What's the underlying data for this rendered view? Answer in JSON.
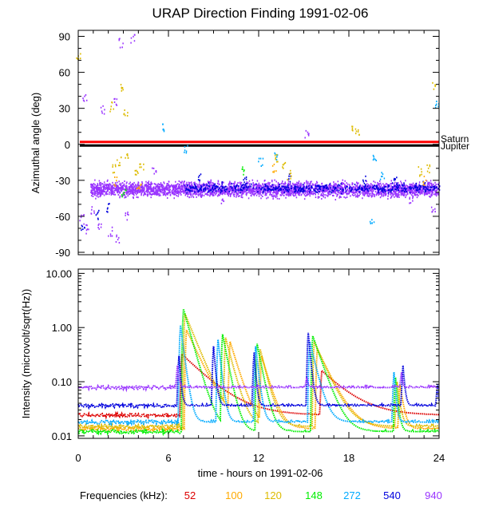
{
  "chart_data": [
    {
      "type": "scatter",
      "title": "URAP Direction Finding  1991-02-06",
      "ylabel": "Azimuthal angle (deg)",
      "xlabel": "",
      "xlim": [
        0,
        24
      ],
      "ylim": [
        -92,
        95
      ],
      "yticks": [
        90,
        60,
        30,
        0,
        -30,
        -60,
        -90
      ],
      "reference_lines": [
        {
          "name": "Saturn",
          "y": 2,
          "color": "#ff0000"
        },
        {
          "name": "Jupiter",
          "y": -1,
          "color": "#000000"
        }
      ],
      "series": [
        {
          "name": "940",
          "color": "#9933ff",
          "band": {
            "center": -37,
            "spread": 5,
            "x_from": 0.8,
            "x_to": 24
          },
          "points": [
            [
              0.2,
              -62
            ],
            [
              0.5,
              -70
            ],
            [
              0.9,
              -55
            ],
            [
              1.4,
              -66
            ],
            [
              2.1,
              -72
            ],
            [
              2.6,
              -78
            ],
            [
              3.2,
              -60
            ],
            [
              2.8,
              85
            ],
            [
              3.6,
              88
            ],
            [
              1.6,
              30
            ],
            [
              0.4,
              40
            ],
            [
              2.4,
              35
            ],
            [
              22.1,
              -45
            ],
            [
              23.6,
              -55
            ],
            [
              15.2,
              10
            ],
            [
              5.0,
              -20
            ],
            [
              9.5,
              -45
            ]
          ]
        },
        {
          "name": "540",
          "color": "#0000dd",
          "band": {
            "center": -36,
            "spread": 3,
            "x_from": 7,
            "x_to": 24
          },
          "points": [
            [
              0.3,
              -68
            ],
            [
              1.2,
              -58
            ],
            [
              2.0,
              -52
            ],
            [
              8.0,
              -27
            ],
            [
              11.0,
              -30
            ],
            [
              14.0,
              -28
            ],
            [
              19.0,
              -30
            ],
            [
              21.0,
              -28
            ],
            [
              23.0,
              -34
            ]
          ]
        },
        {
          "name": "272",
          "color": "#00aaff",
          "band": null,
          "points": [
            [
              5.7,
              14
            ],
            [
              7.1,
              -3
            ],
            [
              19.7,
              -10
            ],
            [
              20.2,
              -25
            ],
            [
              19.5,
              -65
            ],
            [
              23.8,
              35
            ],
            [
              12.1,
              -15
            ],
            [
              13.1,
              -10
            ]
          ]
        },
        {
          "name": "148",
          "color": "#00ee00",
          "band": null,
          "points": [
            [
              3.0,
              -40
            ],
            [
              11.0,
              -22
            ]
          ]
        },
        {
          "name": "120",
          "color": "#ddbb00",
          "band": null,
          "points": [
            [
              2.3,
              -20
            ],
            [
              2.7,
              -14
            ],
            [
              3.2,
              -10
            ],
            [
              3.8,
              -23
            ],
            [
              4.2,
              -18
            ],
            [
              13.2,
              -10
            ],
            [
              13.6,
              -18
            ],
            [
              14.0,
              -25
            ],
            [
              18.3,
              15
            ],
            [
              18.5,
              10
            ],
            [
              22.7,
              -22
            ],
            [
              23.2,
              -20
            ],
            [
              23.6,
              48
            ],
            [
              2.9,
              48
            ],
            [
              2.2,
              32
            ],
            [
              3.1,
              28
            ],
            [
              0.0,
              75
            ]
          ]
        },
        {
          "name": "100",
          "color": "#ffaa00",
          "band": null,
          "points": [
            [
              2.5,
              -30
            ],
            [
              4.0,
              -35
            ],
            [
              13.0,
              -20
            ],
            [
              23.0,
              -30
            ]
          ]
        },
        {
          "name": "52",
          "color": "#dd0000",
          "band": null,
          "points": []
        }
      ]
    },
    {
      "type": "line",
      "title": "",
      "ylabel": "Intensity (microvolt/sqrt(Hz))",
      "xlabel": "time - hours on 1991-02-06",
      "xlim": [
        0,
        24
      ],
      "xticks": [
        0,
        6,
        12,
        18,
        24
      ],
      "ylim": [
        0.009,
        12
      ],
      "yscale": "log",
      "yticks": [
        10.0,
        1.0,
        0.1,
        0.01
      ],
      "ytick_labels": [
        "10.00",
        "1.00",
        "0.10",
        "0.01"
      ],
      "series": [
        {
          "name": "52",
          "color": "#dd0000",
          "baseline": 0.024,
          "bursts": [
            [
              6.9,
              0.32,
              4.6
            ],
            [
              16.2,
              0.16,
              4.4
            ]
          ]
        },
        {
          "name": "100",
          "color": "#ffaa00",
          "baseline": 0.0135,
          "bursts": [
            [
              7.2,
              0.9,
              2.2
            ],
            [
              10.1,
              0.55,
              1.4
            ],
            [
              12.2,
              0.3,
              1.3
            ],
            [
              15.9,
              0.4,
              2.2
            ],
            [
              21.4,
              0.09,
              0.6
            ]
          ]
        },
        {
          "name": "120",
          "color": "#ddbb00",
          "baseline": 0.015,
          "bursts": [
            [
              7.1,
              1.8,
              1.9
            ],
            [
              9.8,
              0.65,
              1.2
            ],
            [
              12.1,
              0.4,
              1.1
            ],
            [
              15.7,
              0.55,
              2.0
            ],
            [
              21.2,
              0.1,
              0.5
            ]
          ]
        },
        {
          "name": "148",
          "color": "#00ee00",
          "baseline": 0.012,
          "bursts": [
            [
              7.0,
              2.2,
              1.3
            ],
            [
              9.6,
              0.75,
              0.9
            ],
            [
              11.9,
              0.5,
              0.9
            ],
            [
              15.6,
              0.7,
              1.6
            ],
            [
              21.1,
              0.12,
              0.4
            ]
          ]
        },
        {
          "name": "272",
          "color": "#00aaff",
          "baseline": 0.018,
          "bursts": [
            [
              6.8,
              1.1,
              0.6
            ],
            [
              9.3,
              0.6,
              0.5
            ],
            [
              11.8,
              0.45,
              0.5
            ],
            [
              15.4,
              0.55,
              1.1
            ],
            [
              21.0,
              0.15,
              0.3
            ]
          ]
        },
        {
          "name": "540",
          "color": "#0000dd",
          "baseline": 0.036,
          "bursts": [
            [
              6.7,
              0.3,
              0.3
            ],
            [
              9.0,
              0.45,
              0.35
            ],
            [
              11.7,
              0.35,
              0.3
            ],
            [
              15.3,
              0.8,
              0.4
            ],
            [
              21.6,
              0.2,
              0.3
            ],
            [
              23.9,
              0.09,
              0.15
            ]
          ]
        },
        {
          "name": "940",
          "color": "#9933ff",
          "baseline": 0.078,
          "bursts": [
            [
              6.6,
              0.2,
              0.3
            ],
            [
              15.2,
              0.12,
              0.25
            ],
            [
              21.5,
              0.15,
              0.2
            ]
          ]
        }
      ]
    }
  ],
  "legend": {
    "label": "Frequencies (kHz):",
    "items": [
      {
        "name": "52",
        "color": "#dd0000"
      },
      {
        "name": "100",
        "color": "#ffaa00"
      },
      {
        "name": "120",
        "color": "#ddbb00"
      },
      {
        "name": "148",
        "color": "#00ee00"
      },
      {
        "name": "272",
        "color": "#00aaff"
      },
      {
        "name": "540",
        "color": "#0000dd"
      },
      {
        "name": "940",
        "color": "#9933ff"
      }
    ]
  }
}
